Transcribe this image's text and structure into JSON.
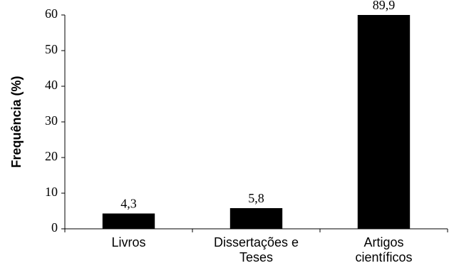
{
  "chart_data": {
    "type": "bar",
    "y_label": "Frequência (%)",
    "categories": [
      "Livros",
      "Dissertações e Teses",
      "Artigos científicos"
    ],
    "values": [
      4.3,
      5.8,
      89.9
    ],
    "value_labels": [
      "4,3",
      "5,8",
      "89,9"
    ],
    "color": "#000000",
    "ylim": [
      0,
      60
    ],
    "yticks": [
      0,
      10,
      20,
      30,
      40,
      50,
      60
    ],
    "grid": false
  }
}
